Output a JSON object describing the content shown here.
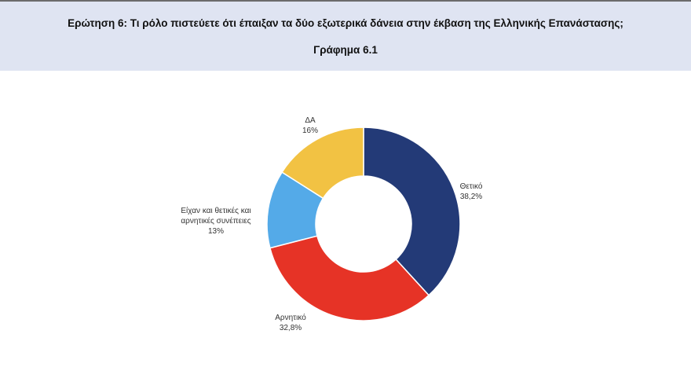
{
  "header": {
    "question": "Ερώτηση 6: Τι ρόλο πιστεύετε ότι έπαιξαν τα δύο εξωτερικά δάνεια στην έκβαση της Ελληνικής Επανάστασης;",
    "figure": "Γράφημα 6.1"
  },
  "chart_data": {
    "type": "pie",
    "subtype": "donut",
    "title": "Γράφημα 6.1",
    "categories": [
      "Θετικό",
      "Αρνητικό",
      "Είχαν και θετικές και αρνητικές συνέπειες",
      "ΔΑ"
    ],
    "values": [
      38.2,
      32.8,
      13,
      16
    ],
    "value_labels": [
      "38,2%",
      "32,8%",
      "13%",
      "16%"
    ],
    "colors": [
      "#233a77",
      "#e63326",
      "#54aae8",
      "#f2c243"
    ],
    "legend": "none (data labels outside)"
  },
  "labels": {
    "positive": {
      "name": "Θετικό",
      "value": "38,2%"
    },
    "negative": {
      "name": "Αρνητικό",
      "value": "32,8%"
    },
    "both": {
      "name1": "Είχαν και θετικές και",
      "name2": "αρνητικές συνέπειες",
      "value": "13%"
    },
    "dk": {
      "name": "ΔΑ",
      "value": "16%"
    }
  }
}
